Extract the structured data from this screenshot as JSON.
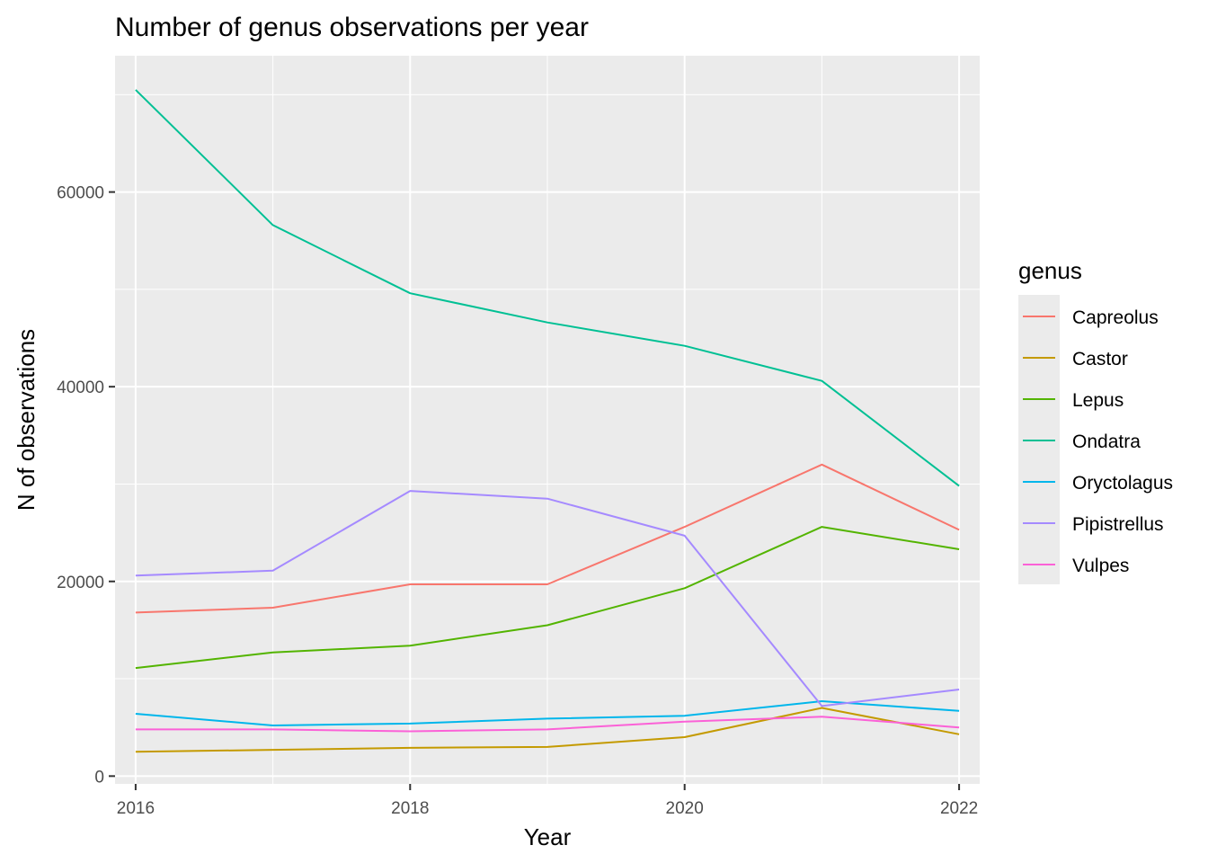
{
  "chart_data": {
    "type": "line",
    "title": "Number of genus observations per year",
    "xlabel": "Year",
    "ylabel": "N of observations",
    "x": [
      2016,
      2017,
      2018,
      2019,
      2020,
      2021,
      2022
    ],
    "xticks": [
      "2016",
      "2018",
      "2020",
      "2022"
    ],
    "yticks": [
      "0",
      "20000",
      "40000",
      "60000"
    ],
    "xlim": [
      2015.85,
      2022.15
    ],
    "ylim": [
      -800,
      74000
    ],
    "grid": true,
    "legend": {
      "title": "genus",
      "position": "right"
    },
    "series": [
      {
        "name": "Capreolus",
        "color": "#F8766D",
        "values": [
          16800,
          17300,
          19700,
          19700,
          25600,
          32000,
          25300
        ]
      },
      {
        "name": "Castor",
        "color": "#C49A00",
        "values": [
          2500,
          2700,
          2900,
          3000,
          4000,
          7000,
          4300
        ]
      },
      {
        "name": "Lepus",
        "color": "#53B400",
        "values": [
          11100,
          12700,
          13400,
          15500,
          19300,
          25600,
          23300
        ]
      },
      {
        "name": "Ondatra",
        "color": "#00C094",
        "values": [
          70500,
          56600,
          49600,
          46600,
          44200,
          40600,
          29800
        ]
      },
      {
        "name": "Oryctolagus",
        "color": "#00B6EB",
        "values": [
          6400,
          5200,
          5400,
          5900,
          6200,
          7700,
          6700
        ]
      },
      {
        "name": "Pipistrellus",
        "color": "#A58AFF",
        "values": [
          20600,
          21100,
          29300,
          28500,
          24700,
          7200,
          8900
        ]
      },
      {
        "name": "Vulpes",
        "color": "#FB61D7",
        "values": [
          4800,
          4800,
          4600,
          4800,
          5600,
          6100,
          5000
        ]
      }
    ]
  }
}
